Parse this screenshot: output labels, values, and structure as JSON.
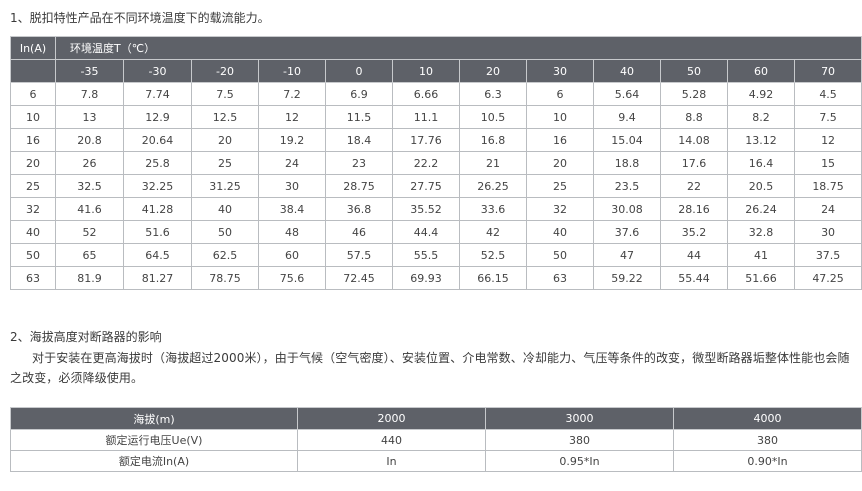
{
  "section1": {
    "title": "1、脱扣特性产品在不同环境温度下的载流能力。",
    "corner_label": "In(A)",
    "temp_label": "环境温度T（℃）",
    "temperatures": [
      "-35",
      "-30",
      "-20",
      "-10",
      "0",
      "10",
      "20",
      "30",
      "40",
      "50",
      "60",
      "70"
    ],
    "rows": [
      {
        "in": "6",
        "values": [
          "7.8",
          "7.74",
          "7.5",
          "7.2",
          "6.9",
          "6.66",
          "6.3",
          "6",
          "5.64",
          "5.28",
          "4.92",
          "4.5"
        ]
      },
      {
        "in": "10",
        "values": [
          "13",
          "12.9",
          "12.5",
          "12",
          "11.5",
          "11.1",
          "10.5",
          "10",
          "9.4",
          "8.8",
          "8.2",
          "7.5"
        ]
      },
      {
        "in": "16",
        "values": [
          "20.8",
          "20.64",
          "20",
          "19.2",
          "18.4",
          "17.76",
          "16.8",
          "16",
          "15.04",
          "14.08",
          "13.12",
          "12"
        ]
      },
      {
        "in": "20",
        "values": [
          "26",
          "25.8",
          "25",
          "24",
          "23",
          "22.2",
          "21",
          "20",
          "18.8",
          "17.6",
          "16.4",
          "15"
        ]
      },
      {
        "in": "25",
        "values": [
          "32.5",
          "32.25",
          "31.25",
          "30",
          "28.75",
          "27.75",
          "26.25",
          "25",
          "23.5",
          "22",
          "20.5",
          "18.75"
        ]
      },
      {
        "in": "32",
        "values": [
          "41.6",
          "41.28",
          "40",
          "38.4",
          "36.8",
          "35.52",
          "33.6",
          "32",
          "30.08",
          "28.16",
          "26.24",
          "24"
        ]
      },
      {
        "in": "40",
        "values": [
          "52",
          "51.6",
          "50",
          "48",
          "46",
          "44.4",
          "42",
          "40",
          "37.6",
          "35.2",
          "32.8",
          "30"
        ]
      },
      {
        "in": "50",
        "values": [
          "65",
          "64.5",
          "62.5",
          "60",
          "57.5",
          "55.5",
          "52.5",
          "50",
          "47",
          "44",
          "41",
          "37.5"
        ]
      },
      {
        "in": "63",
        "values": [
          "81.9",
          "81.27",
          "78.75",
          "75.6",
          "72.45",
          "69.93",
          "66.15",
          "63",
          "59.22",
          "55.44",
          "51.66",
          "47.25"
        ]
      }
    ]
  },
  "section2": {
    "title": "2、海拔高度对断路器的影响",
    "paragraph": "对于安装在更高海拔时（海拔超过2000米），由于气候（空气密度）、安装位置、介电常数、冷却能力、气压等条件的改变，微型断路器垢整体性能也会随之改变，必须降级使用。",
    "headers": [
      "海拔(m)",
      "2000",
      "3000",
      "4000"
    ],
    "rows": [
      {
        "label": "额定运行电压Ue(V)",
        "values": [
          "440",
          "380",
          "380"
        ]
      },
      {
        "label": "额定电流In(A)",
        "values": [
          "In",
          "0.95*In",
          "0.90*In"
        ]
      }
    ]
  }
}
